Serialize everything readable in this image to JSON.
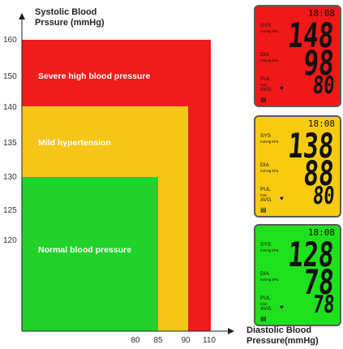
{
  "chart": {
    "y_axis_title_line1": "Systolic Blood",
    "y_axis_title_line2": "Prssure (mmHg)",
    "x_axis_title_line1": "Diastolic Blood",
    "x_axis_title_line2": "Pressure(mmHg)",
    "y_ticks": [
      "160",
      "150",
      "140",
      "135",
      "130",
      "125",
      "120"
    ],
    "x_ticks": [
      "80",
      "85",
      "90",
      "110"
    ],
    "zones": [
      {
        "label": "Severe high blood pressure",
        "color": "#ee1c1c",
        "max_diastolic": 110,
        "max_systolic": 160
      },
      {
        "label": "Mild hypertension",
        "color": "#f5c518",
        "max_diastolic": 90,
        "max_systolic": 140
      },
      {
        "label": "Normal blood pressure",
        "color": "#22d12a",
        "max_diastolic": 85,
        "max_systolic": 130
      }
    ]
  },
  "monitors": [
    {
      "bg": "#f01818",
      "time": "18:08",
      "sys_label": "SYS",
      "dia_label": "DIA",
      "pul_label": "PUL",
      "unit": "mmHg kPa",
      "per_min": "/min",
      "avg": "AVG.",
      "sys": "148",
      "dia": "98",
      "pul": "80"
    },
    {
      "bg": "#f7cb10",
      "time": "18:08",
      "sys_label": "SYS",
      "dia_label": "DIA",
      "pul_label": "PUL",
      "unit": "mmHg kPa",
      "per_min": "/min",
      "avg": "AVG.",
      "sys": "138",
      "dia": "88",
      "pul": "80"
    },
    {
      "bg": "#1fe01c",
      "time": "18:08",
      "sys_label": "SYS",
      "dia_label": "DIA",
      "pul_label": "PUL",
      "unit": "mmHg kPa",
      "per_min": "/min",
      "avg": "AVG.",
      "sys": "128",
      "dia": "78",
      "pul": "78"
    }
  ]
}
